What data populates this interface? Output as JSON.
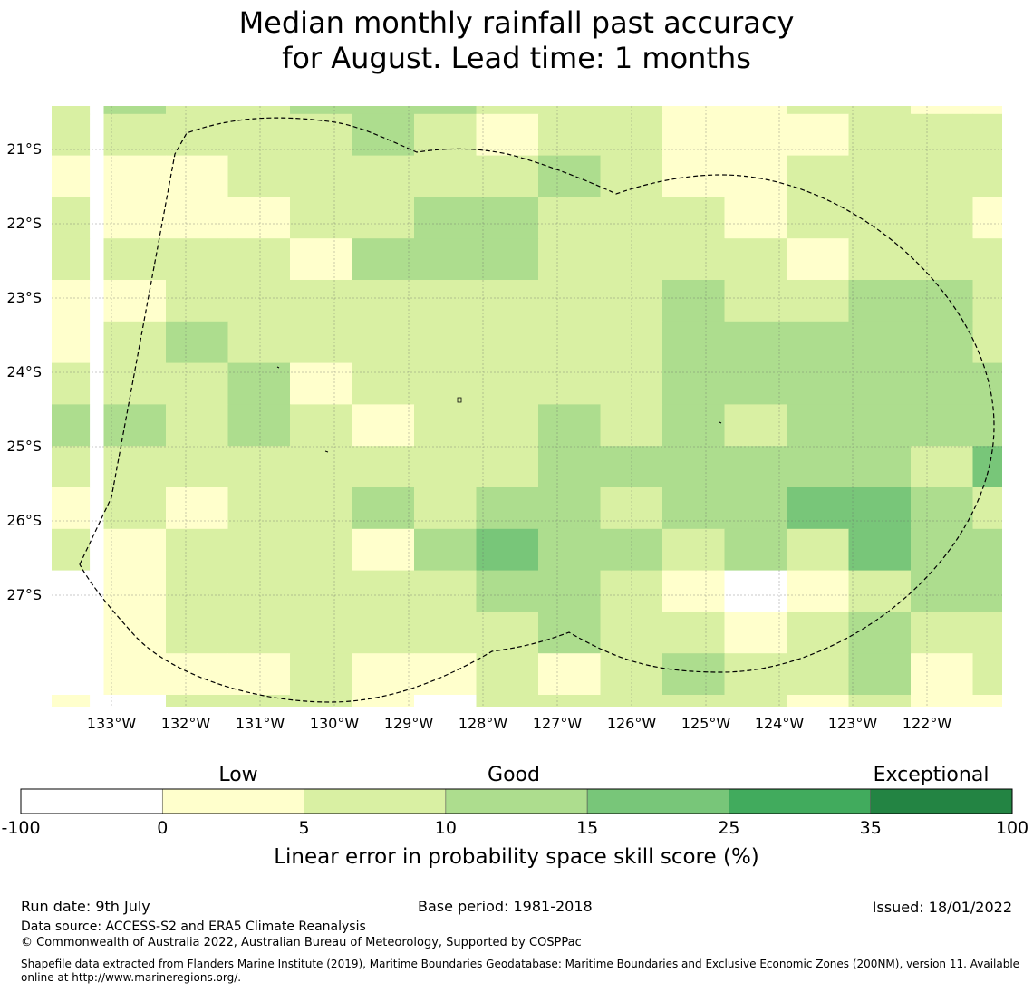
{
  "title": {
    "line1": "Median monthly rainfall past accuracy",
    "line2": "for August. Lead time: 1 months"
  },
  "map": {
    "latitude_labels": [
      "21°S",
      "22°S",
      "23°S",
      "24°S",
      "25°S",
      "26°S",
      "27°S"
    ],
    "longitude_labels": [
      "133°W",
      "132°W",
      "131°W",
      "130°W",
      "129°W",
      "128°W",
      "127°W",
      "126°W",
      "125°W",
      "124°W",
      "123°W",
      "122°W"
    ],
    "category_colors": {
      "0": "#ffffff",
      "1": "#ffffcc",
      "2": "#d9f0a3",
      "3": "#addd8e",
      "4": "#78c679",
      "5": "#41ab5d",
      "6": "#238443"
    },
    "grid_categories": [
      [
        2,
        3,
        2,
        2,
        3,
        3,
        3,
        2,
        2,
        2,
        1,
        1,
        2,
        2,
        1,
        1
      ],
      [
        2,
        2,
        2,
        2,
        2,
        3,
        2,
        1,
        2,
        2,
        1,
        1,
        1,
        2,
        2,
        2
      ],
      [
        1,
        1,
        1,
        2,
        2,
        2,
        2,
        2,
        3,
        2,
        1,
        1,
        2,
        2,
        2,
        2
      ],
      [
        2,
        1,
        1,
        1,
        2,
        2,
        3,
        3,
        2,
        2,
        2,
        1,
        2,
        2,
        2,
        1
      ],
      [
        2,
        2,
        2,
        2,
        1,
        3,
        3,
        3,
        2,
        2,
        2,
        2,
        1,
        2,
        2,
        2
      ],
      [
        1,
        1,
        2,
        2,
        2,
        2,
        2,
        2,
        2,
        2,
        3,
        2,
        2,
        3,
        3,
        2
      ],
      [
        1,
        2,
        3,
        2,
        2,
        2,
        2,
        2,
        2,
        2,
        3,
        3,
        3,
        3,
        3,
        2
      ],
      [
        2,
        2,
        2,
        3,
        1,
        2,
        2,
        2,
        2,
        2,
        3,
        3,
        3,
        3,
        3,
        3
      ],
      [
        3,
        3,
        2,
        3,
        2,
        1,
        2,
        2,
        3,
        2,
        3,
        2,
        3,
        3,
        3,
        3
      ],
      [
        2,
        2,
        2,
        2,
        2,
        2,
        2,
        2,
        3,
        3,
        3,
        3,
        3,
        3,
        2,
        4
      ],
      [
        1,
        2,
        1,
        2,
        2,
        3,
        2,
        3,
        3,
        2,
        3,
        3,
        4,
        4,
        3,
        2
      ],
      [
        2,
        1,
        2,
        2,
        2,
        1,
        3,
        4,
        3,
        3,
        2,
        3,
        2,
        4,
        3,
        3
      ],
      [
        0,
        1,
        2,
        2,
        2,
        2,
        2,
        3,
        3,
        2,
        1,
        0,
        1,
        2,
        3,
        3
      ],
      [
        0,
        1,
        2,
        2,
        2,
        2,
        2,
        2,
        3,
        2,
        2,
        1,
        2,
        3,
        2,
        2
      ],
      [
        0,
        1,
        1,
        1,
        2,
        1,
        1,
        2,
        1,
        2,
        3,
        2,
        2,
        3,
        1,
        2
      ],
      [
        1,
        0,
        2,
        2,
        2,
        1,
        0,
        2,
        2,
        2,
        2,
        2,
        1,
        2,
        1,
        1
      ]
    ]
  },
  "colorbar": {
    "categories": [
      "Low",
      "Good",
      "Exceptional"
    ],
    "tick_labels": [
      "-100",
      "0",
      "5",
      "10",
      "15",
      "25",
      "35",
      "100"
    ],
    "colors": [
      "#ffffff",
      "#ffffcc",
      "#d9f0a3",
      "#addd8e",
      "#78c679",
      "#41ab5d",
      "#238443"
    ],
    "label": "Linear error in probability space skill score (%)"
  },
  "footer": {
    "run_date": "Run date: 9th July",
    "base_period": "Base period: 1981-2018",
    "issued": "Issued: 18/01/2022",
    "data_source": "Data source: ACCESS-S2 and ERA5 Climate Reanalysis",
    "copyright": "© Commonwealth of Australia 2022, Australian Bureau of Meteorology, Supported by COSPPac",
    "shapefile_note": "Shapefile data extracted from Flanders Marine Institute (2019), Maritime Boundaries Geodatabase: Maritime Boundaries and Exclusive Economic Zones (200NM), version 11. Available online at http://www.marineregions.org/."
  }
}
